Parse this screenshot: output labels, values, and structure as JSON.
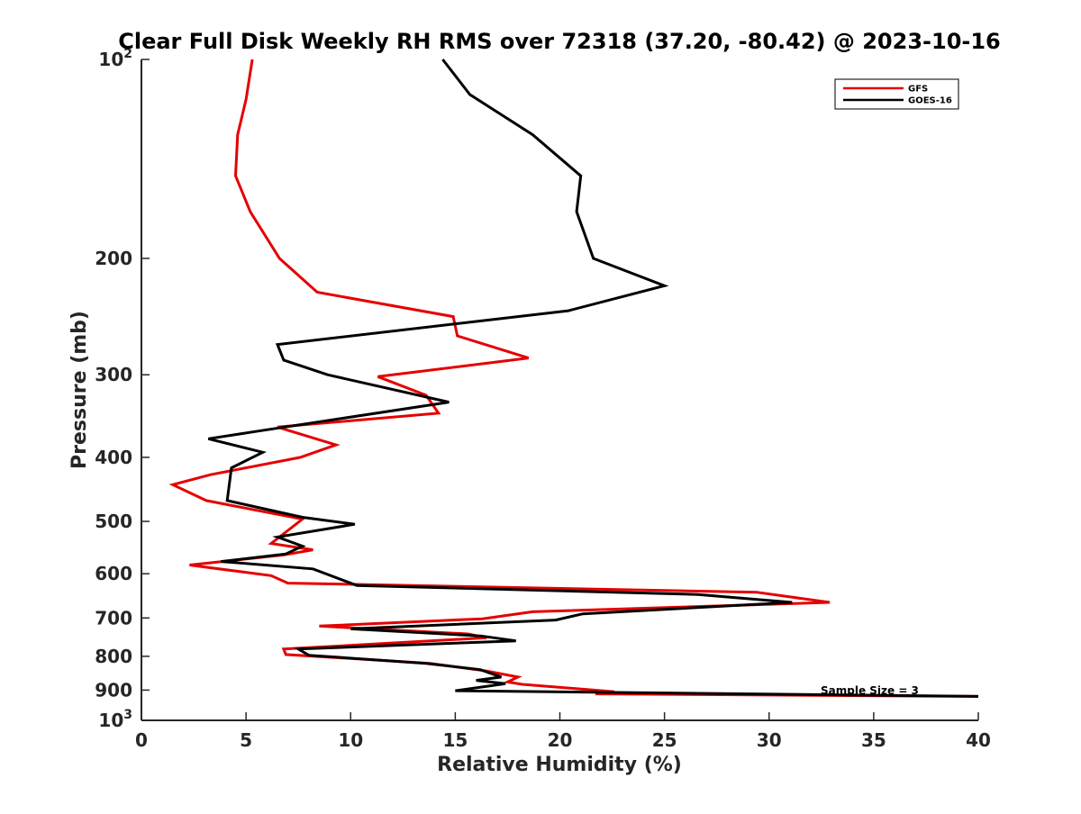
{
  "chart_data": {
    "type": "line",
    "title": "Clear Full Disk Weekly RH RMS over 72318 (37.20, -80.42) @ 2023-10-16",
    "xlabel": "Relative Humidity (%)",
    "ylabel": "Pressure (mb)",
    "xlim": [
      0,
      40
    ],
    "ylim": [
      100,
      1000
    ],
    "y_scale": "log",
    "y_reversed": true,
    "grid": false,
    "legend_position": "top-right",
    "x_ticks": [
      0,
      5,
      10,
      15,
      20,
      25,
      30,
      35,
      40
    ],
    "x_tick_labels": [
      "0",
      "5",
      "10",
      "15",
      "20",
      "25",
      "30",
      "35",
      "40"
    ],
    "y_ticks": [
      100,
      200,
      300,
      400,
      500,
      600,
      700,
      800,
      900,
      1000
    ],
    "y_tick_labels": [
      {
        "base": "10",
        "exp": "2"
      },
      {
        "base": "200",
        "exp": ""
      },
      {
        "base": "300",
        "exp": ""
      },
      {
        "base": "400",
        "exp": ""
      },
      {
        "base": "500",
        "exp": ""
      },
      {
        "base": "600",
        "exp": ""
      },
      {
        "base": "700",
        "exp": ""
      },
      {
        "base": "800",
        "exp": ""
      },
      {
        "base": "900",
        "exp": ""
      },
      {
        "base": "10",
        "exp": "3"
      }
    ],
    "annotation": "Sample Size = 3",
    "series": [
      {
        "name": "GFS",
        "color": "#e50000",
        "points": [
          [
            5.3,
            100
          ],
          [
            5.0,
            115
          ],
          [
            4.6,
            130
          ],
          [
            4.5,
            150
          ],
          [
            5.2,
            170
          ],
          [
            6.6,
            200
          ],
          [
            8.4,
            225
          ],
          [
            14.9,
            245
          ],
          [
            15.1,
            262
          ],
          [
            18.5,
            283
          ],
          [
            11.3,
            302
          ],
          [
            13.6,
            322
          ],
          [
            14.2,
            343
          ],
          [
            6.5,
            360
          ],
          [
            9.3,
            383
          ],
          [
            7.6,
            400
          ],
          [
            3.3,
            425
          ],
          [
            1.5,
            440
          ],
          [
            3.1,
            465
          ],
          [
            7.7,
            496
          ],
          [
            6.2,
            540
          ],
          [
            8.2,
            552
          ],
          [
            6.8,
            562
          ],
          [
            2.3,
            582
          ],
          [
            6.2,
            604
          ],
          [
            7.0,
            620
          ],
          [
            29.4,
            640
          ],
          [
            32.9,
            663
          ],
          [
            18.7,
            685
          ],
          [
            16.3,
            702
          ],
          [
            8.5,
            720
          ],
          [
            15.6,
            740
          ],
          [
            16.5,
            750
          ],
          [
            6.8,
            780
          ],
          [
            6.9,
            795
          ],
          [
            13.8,
            820
          ],
          [
            16.5,
            842
          ],
          [
            18.0,
            860
          ],
          [
            17.5,
            875
          ],
          [
            18.2,
            882
          ],
          [
            22.6,
            905
          ],
          [
            21.7,
            912
          ],
          [
            40.0,
            920
          ]
        ]
      },
      {
        "name": "GOES-16",
        "color": "#000000",
        "points": [
          [
            14.4,
            100
          ],
          [
            15.7,
            113
          ],
          [
            18.7,
            130
          ],
          [
            21.0,
            150
          ],
          [
            20.8,
            170
          ],
          [
            21.6,
            200
          ],
          [
            25.0,
            220
          ],
          [
            20.4,
            240
          ],
          [
            6.5,
            270
          ],
          [
            6.8,
            285
          ],
          [
            8.9,
            300
          ],
          [
            14.7,
            330
          ],
          [
            5.6,
            365
          ],
          [
            3.2,
            375
          ],
          [
            5.8,
            393
          ],
          [
            4.3,
            415
          ],
          [
            4.1,
            465
          ],
          [
            7.7,
            493
          ],
          [
            10.2,
            505
          ],
          [
            6.5,
            528
          ],
          [
            7.7,
            545
          ],
          [
            6.9,
            560
          ],
          [
            3.8,
            575
          ],
          [
            8.2,
            590
          ],
          [
            10.3,
            625
          ],
          [
            26.6,
            645
          ],
          [
            31.1,
            663
          ],
          [
            21.1,
            690
          ],
          [
            19.8,
            705
          ],
          [
            10.0,
            727
          ],
          [
            16.2,
            745
          ],
          [
            17.9,
            758
          ],
          [
            7.5,
            780
          ],
          [
            8.0,
            797
          ],
          [
            13.6,
            820
          ],
          [
            16.2,
            838
          ],
          [
            17.2,
            860
          ],
          [
            16.0,
            870
          ],
          [
            17.4,
            880
          ],
          [
            15.0,
            902
          ],
          [
            40.0,
            920
          ]
        ]
      }
    ]
  }
}
